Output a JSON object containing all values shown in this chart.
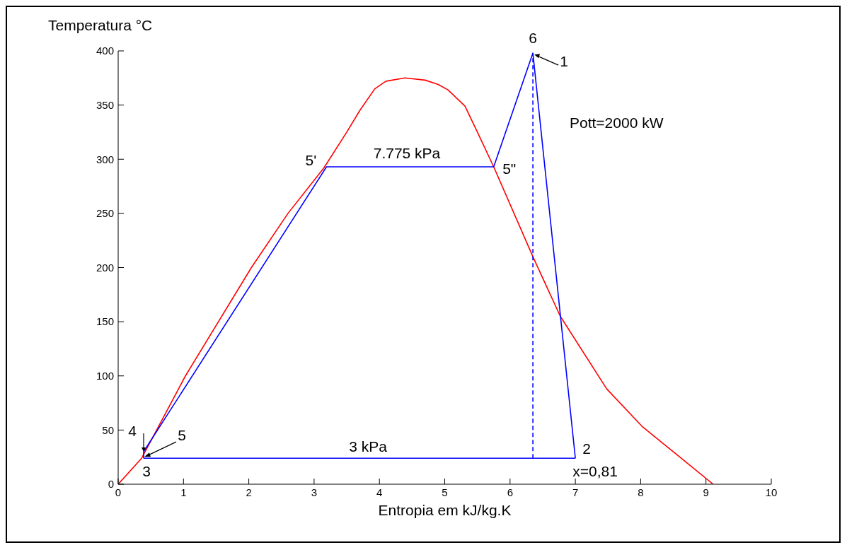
{
  "chart_data": {
    "type": "line",
    "xlabel": "Entropia em kJ/kg.K",
    "ylabel": "Temperatura °C",
    "xlim": [
      0,
      10
    ],
    "xticks": [
      0,
      1,
      2,
      3,
      4,
      5,
      6,
      7,
      8,
      9,
      10
    ],
    "ylim": [
      0,
      400
    ],
    "yticks": [
      0,
      50,
      100,
      150,
      200,
      250,
      300,
      350,
      400
    ],
    "grid": false,
    "legend": false,
    "marker": "none",
    "series": [
      {
        "color": "#ff0000",
        "x": [
          0,
          0.36,
          1.03,
          2.04,
          2.6,
          3.15,
          3.5,
          3.7,
          3.93,
          4.1,
          4.39,
          4.7,
          4.9,
          5.05,
          5.31,
          5.5,
          5.75,
          6.35,
          6.77,
          7.48,
          8.02,
          8.6,
          9.11
        ],
        "values": [
          0,
          24,
          100,
          200,
          250,
          292,
          325,
          345,
          365,
          372,
          375,
          373,
          369,
          364,
          349,
          325,
          293,
          210,
          155,
          88,
          53.5,
          25,
          0
        ]
      },
      {
        "color": "#0000ff",
        "line_style": "solid",
        "x": [
          0.39,
          0.39,
          3.19,
          5.75,
          6.35,
          7.0
        ],
        "values": [
          24,
          30,
          293,
          293,
          398,
          24
        ]
      },
      {
        "color": "#0000ff",
        "line_style": "solid",
        "x": [
          0.39,
          7.0
        ],
        "values": [
          24,
          24
        ]
      },
      {
        "color": "#0000ff",
        "line_style": "dashed",
        "x": [
          6.35,
          6.35
        ],
        "values": [
          24,
          398
        ]
      }
    ],
    "annotations": [
      {
        "text": "6",
        "x": 6.35,
        "y": 398
      },
      {
        "text": "1",
        "x": 6.35,
        "y": 396
      },
      {
        "text": "5'",
        "x": 3.19,
        "y": 293
      },
      {
        "text": "5\"",
        "x": 5.75,
        "y": 293
      },
      "7.775 kPa",
      "3 kPa",
      {
        "text": "2",
        "x": 7.0,
        "y": 24
      },
      {
        "text": "x=0,81",
        "x": 7.0,
        "y": 24
      },
      {
        "text": "3",
        "x": 0.39,
        "y": 24
      },
      {
        "text": "4",
        "x": 0.39,
        "y": 30
      },
      {
        "text": "5",
        "x": 0.39,
        "y": 26
      },
      "Pott=2000 kW"
    ]
  }
}
